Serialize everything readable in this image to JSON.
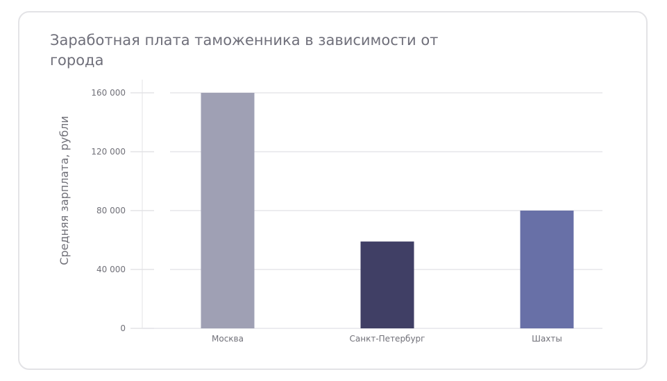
{
  "chart_data": {
    "type": "bar",
    "title": "Заработная плата таможенника в зависимости от города",
    "xlabel": "",
    "ylabel": "Средняя зарплата, рубли",
    "categories": [
      "Москва",
      "Санкт-Петербург",
      "Шахты"
    ],
    "values": [
      160000,
      59000,
      80000
    ],
    "colors": [
      "#9fa0b4",
      "#403f65",
      "#6870a7"
    ],
    "ylim": [
      0,
      160000
    ],
    "yticks": [
      0,
      40000,
      80000,
      120000,
      160000
    ],
    "ytick_labels": [
      "0",
      "40 000",
      "80 000",
      "120 000",
      "160 000"
    ],
    "grid": true
  }
}
